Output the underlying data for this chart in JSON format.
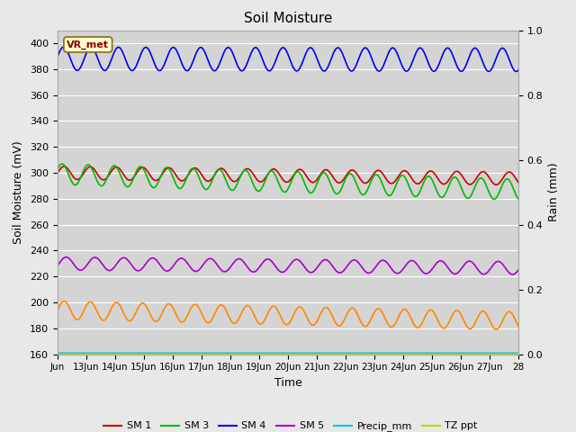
{
  "title": "Soil Moisture",
  "xlabel": "Time",
  "ylabel_left": "Soil Moisture (mV)",
  "ylabel_right": "Rain (mm)",
  "ylim_left": [
    160,
    410
  ],
  "ylim_right": [
    0.0,
    1.0
  ],
  "yticks_left": [
    160,
    180,
    200,
    220,
    240,
    260,
    280,
    300,
    320,
    340,
    360,
    380,
    400
  ],
  "yticks_right": [
    0.0,
    0.2,
    0.4,
    0.6,
    0.8,
    1.0
  ],
  "x_start": 12,
  "x_end": 28,
  "xtick_labels": [
    "Jun",
    "13Jun",
    "14Jun",
    "15Jun",
    "16Jun",
    "17Jun",
    "18Jun",
    "19Jun",
    "20Jun",
    "21Jun",
    "22Jun",
    "23Jun",
    "24Jun",
    "25Jun",
    "26Jun",
    "27Jun",
    "28"
  ],
  "xtick_positions": [
    12,
    13,
    14,
    15,
    16,
    17,
    18,
    19,
    20,
    21,
    22,
    23,
    24,
    25,
    26,
    27,
    28
  ],
  "fig_bg_color": "#e8e8e8",
  "plot_bg_color": "#d4d4d4",
  "grid_color": "#ffffff",
  "series": {
    "SM1": {
      "color": "#cc0000",
      "base": 300,
      "amplitude": 5,
      "trend": -0.28,
      "freq_per_day": 2.2,
      "phase": 0.0
    },
    "SM2": {
      "color": "#ff8800",
      "base": 194,
      "amplitude": 7,
      "trend": -0.52,
      "freq_per_day": 2.2,
      "phase": 0.0
    },
    "SM3": {
      "color": "#00bb00",
      "base": 299,
      "amplitude": 8,
      "trend": -0.75,
      "freq_per_day": 2.2,
      "phase": 0.5
    },
    "SM4": {
      "color": "#0000ee",
      "base": 388,
      "amplitude": 9,
      "trend": -0.05,
      "freq_per_day": 2.1,
      "phase": 0.2
    },
    "SM5": {
      "color": "#aa00cc",
      "base": 230,
      "amplitude": 5,
      "trend": -0.22,
      "freq_per_day": 2.0,
      "phase": -0.3
    }
  },
  "legend_entries": [
    {
      "label": "SM 1",
      "color": "#cc0000",
      "linestyle": "-"
    },
    {
      "label": "SM 2",
      "color": "#ff8800",
      "linestyle": "-"
    },
    {
      "label": "SM 3",
      "color": "#00bb00",
      "linestyle": "-"
    },
    {
      "label": "SM 4",
      "color": "#0000ee",
      "linestyle": "-"
    },
    {
      "label": "SM 5",
      "color": "#aa00cc",
      "linestyle": "-"
    },
    {
      "label": "Precip_mm",
      "color": "#00cccc",
      "linestyle": "-"
    },
    {
      "label": "TZ ppt",
      "color": "#cccc00",
      "linestyle": "-"
    }
  ],
  "annotation_text": "VR_met",
  "tz_ppt_value": 160.5
}
